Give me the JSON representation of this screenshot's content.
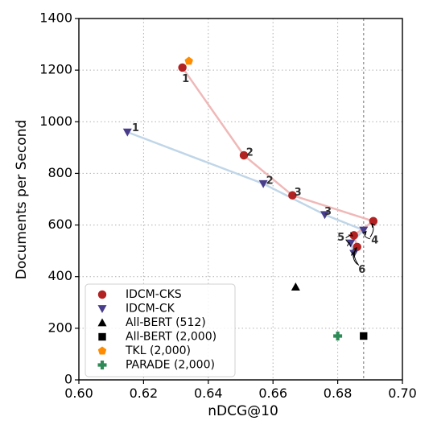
{
  "chart_data": {
    "type": "scatter",
    "xlabel": "nDCG@10",
    "ylabel": "Documents per Second",
    "xlim": [
      0.6,
      0.7
    ],
    "ylim": [
      0,
      1400
    ],
    "xticks": [
      "0.60",
      "0.62",
      "0.64",
      "0.66",
      "0.68",
      "0.70"
    ],
    "yticks": [
      "0",
      "200",
      "400",
      "600",
      "800",
      "1000",
      "1200",
      "1400"
    ],
    "grid": "dotted",
    "vline_x": 0.688,
    "legend_position": "lower-left",
    "series": [
      {
        "name": "IDCM-CKS",
        "marker": "circle",
        "color": "#b22222",
        "line_color": "#f0b8b8",
        "connected": true,
        "points": [
          {
            "x": 0.632,
            "y": 1210
          },
          {
            "x": 0.651,
            "y": 870
          },
          {
            "x": 0.666,
            "y": 715
          },
          {
            "x": 0.691,
            "y": 615
          },
          {
            "x": 0.685,
            "y": 560
          },
          {
            "x": 0.686,
            "y": 515
          }
        ]
      },
      {
        "name": "IDCM-CK",
        "marker": "triangle-down",
        "color": "#483d8b",
        "line_color": "#c0d6e8",
        "connected": true,
        "points": [
          {
            "x": 0.615,
            "y": 960
          },
          {
            "x": 0.657,
            "y": 760
          },
          {
            "x": 0.676,
            "y": 640
          },
          {
            "x": 0.688,
            "y": 580
          },
          {
            "x": 0.684,
            "y": 530
          },
          {
            "x": 0.685,
            "y": 490
          }
        ]
      },
      {
        "name": "All-BERT (512)",
        "marker": "triangle-up",
        "color": "#000000",
        "points": [
          {
            "x": 0.667,
            "y": 360
          }
        ]
      },
      {
        "name": "All-BERT (2,000)",
        "marker": "square",
        "color": "#000000",
        "points": [
          {
            "x": 0.688,
            "y": 170
          }
        ]
      },
      {
        "name": "TKL (2,000)",
        "marker": "pentagon",
        "color": "#ff8c00",
        "points": [
          {
            "x": 0.634,
            "y": 1235
          }
        ]
      },
      {
        "name": "PARADE (2,000)",
        "marker": "plus",
        "color": "#2e8b57",
        "points": [
          {
            "x": 0.68,
            "y": 170
          }
        ]
      }
    ],
    "annotations": [
      {
        "text": "1",
        "x": 0.633,
        "y": 1165
      },
      {
        "text": "1",
        "x": 0.6175,
        "y": 975
      },
      {
        "text": "2",
        "x": 0.6528,
        "y": 880
      },
      {
        "text": "2",
        "x": 0.659,
        "y": 770
      },
      {
        "text": "3",
        "x": 0.6677,
        "y": 725
      },
      {
        "text": "3",
        "x": 0.677,
        "y": 650
      },
      {
        "text": "4",
        "x": 0.6915,
        "y": 540
      },
      {
        "text": "5",
        "x": 0.681,
        "y": 550
      },
      {
        "text": "6",
        "x": 0.6875,
        "y": 425
      }
    ]
  }
}
